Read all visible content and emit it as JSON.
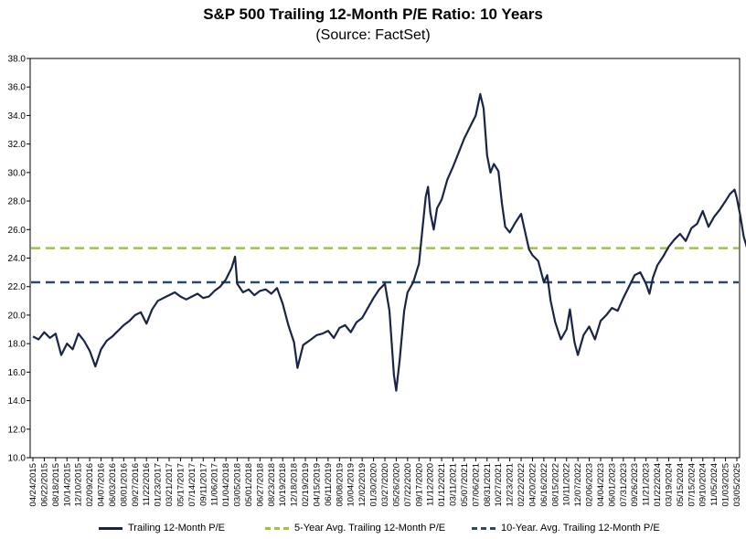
{
  "chart_data": {
    "type": "line",
    "title": "S&P 500 Trailing 12-Month P/E Ratio: 10 Years",
    "subtitle": "(Source: FactSet)",
    "xlabel": "",
    "ylabel": "",
    "ylim": [
      10.0,
      38.0
    ],
    "yticks": [
      "10.0",
      "12.0",
      "14.0",
      "16.0",
      "18.0",
      "20.0",
      "22.0",
      "24.0",
      "26.0",
      "28.0",
      "30.0",
      "32.0",
      "34.0",
      "36.0",
      "38.0"
    ],
    "xticks": [
      "04/24/2015",
      "06/22/2015",
      "08/18/2015",
      "10/14/2015",
      "12/10/2015",
      "02/09/2016",
      "04/07/2016",
      "06/03/2016",
      "08/01/2016",
      "09/27/2016",
      "11/22/2016",
      "01/23/2017",
      "03/21/2017",
      "05/17/2017",
      "07/14/2017",
      "09/11/2017",
      "11/06/2017",
      "01/04/2018",
      "03/05/2018",
      "05/01/2018",
      "06/27/2018",
      "08/23/2018",
      "10/19/2018",
      "12/18/2018",
      "02/19/2019",
      "04/15/2019",
      "06/11/2019",
      "08/08/2019",
      "10/04/2019",
      "12/02/2019",
      "01/30/2020",
      "03/27/2020",
      "05/26/2020",
      "07/22/2020",
      "09/17/2020",
      "11/12/2020",
      "01/12/2021",
      "03/11/2021",
      "05/07/2021",
      "07/06/2021",
      "08/31/2021",
      "10/27/2021",
      "12/23/2021",
      "02/22/2022",
      "04/20/2022",
      "06/16/2022",
      "08/15/2022",
      "10/11/2022",
      "12/07/2022",
      "02/06/2023",
      "04/04/2023",
      "06/01/2023",
      "07/31/2023",
      "09/26/2023",
      "11/21/2023",
      "01/22/2024",
      "03/19/2024",
      "05/15/2024",
      "07/15/2024",
      "09/10/2024",
      "11/05/2024",
      "01/03/2025",
      "03/05/2025"
    ],
    "grid": false,
    "legend_position": "bottom",
    "series": [
      {
        "name": "Trailing 12-Month P/E",
        "color": "#1a2447",
        "points": [
          [
            0,
            18.5
          ],
          [
            0.5,
            18.3
          ],
          [
            1,
            18.8
          ],
          [
            1.5,
            18.4
          ],
          [
            2,
            18.7
          ],
          [
            2.5,
            17.2
          ],
          [
            3,
            18.0
          ],
          [
            3.5,
            17.6
          ],
          [
            4,
            18.7
          ],
          [
            4.5,
            18.2
          ],
          [
            5,
            17.5
          ],
          [
            5.5,
            16.4
          ],
          [
            6,
            17.6
          ],
          [
            6.5,
            18.2
          ],
          [
            7,
            18.5
          ],
          [
            7.5,
            18.9
          ],
          [
            8,
            19.3
          ],
          [
            8.5,
            19.6
          ],
          [
            9,
            20.0
          ],
          [
            9.5,
            20.2
          ],
          [
            10,
            19.4
          ],
          [
            10.5,
            20.4
          ],
          [
            11,
            21.0
          ],
          [
            11.5,
            21.2
          ],
          [
            12,
            21.4
          ],
          [
            12.5,
            21.6
          ],
          [
            13,
            21.3
          ],
          [
            13.5,
            21.1
          ],
          [
            14,
            21.3
          ],
          [
            14.5,
            21.5
          ],
          [
            15,
            21.2
          ],
          [
            15.5,
            21.3
          ],
          [
            16,
            21.7
          ],
          [
            16.5,
            22.0
          ],
          [
            17,
            22.5
          ],
          [
            17.5,
            23.3
          ],
          [
            17.8,
            24.1
          ],
          [
            18,
            22.2
          ],
          [
            18.5,
            21.6
          ],
          [
            19,
            21.8
          ],
          [
            19.5,
            21.4
          ],
          [
            20,
            21.7
          ],
          [
            20.5,
            21.8
          ],
          [
            21,
            21.5
          ],
          [
            21.5,
            21.9
          ],
          [
            22,
            20.8
          ],
          [
            22.5,
            19.3
          ],
          [
            23,
            18.1
          ],
          [
            23.3,
            16.3
          ],
          [
            23.8,
            17.9
          ],
          [
            24.5,
            18.3
          ],
          [
            25,
            18.6
          ],
          [
            25.5,
            18.7
          ],
          [
            26,
            18.9
          ],
          [
            26.5,
            18.4
          ],
          [
            27,
            19.1
          ],
          [
            27.5,
            19.3
          ],
          [
            28,
            18.8
          ],
          [
            28.5,
            19.5
          ],
          [
            29,
            19.8
          ],
          [
            29.5,
            20.5
          ],
          [
            30,
            21.2
          ],
          [
            30.5,
            21.8
          ],
          [
            31,
            22.2
          ],
          [
            31.4,
            20.3
          ],
          [
            31.8,
            15.8
          ],
          [
            32,
            14.7
          ],
          [
            32.3,
            16.8
          ],
          [
            32.7,
            20.3
          ],
          [
            33,
            21.6
          ],
          [
            33.5,
            22.3
          ],
          [
            34,
            23.6
          ],
          [
            34.3,
            26.0
          ],
          [
            34.6,
            28.3
          ],
          [
            34.8,
            29.0
          ],
          [
            35,
            27.2
          ],
          [
            35.3,
            26.0
          ],
          [
            35.6,
            27.5
          ],
          [
            36,
            28.1
          ],
          [
            36.5,
            29.5
          ],
          [
            37,
            30.4
          ],
          [
            37.5,
            31.4
          ],
          [
            38,
            32.4
          ],
          [
            38.5,
            33.2
          ],
          [
            39,
            34.0
          ],
          [
            39.4,
            35.5
          ],
          [
            39.7,
            34.5
          ],
          [
            40,
            31.2
          ],
          [
            40.3,
            30.0
          ],
          [
            40.6,
            30.6
          ],
          [
            41,
            30.1
          ],
          [
            41.3,
            27.9
          ],
          [
            41.6,
            26.2
          ],
          [
            42,
            25.8
          ],
          [
            42.5,
            26.5
          ],
          [
            43,
            27.1
          ],
          [
            43.3,
            26.0
          ],
          [
            43.7,
            24.6
          ],
          [
            44,
            24.2
          ],
          [
            44.5,
            23.8
          ],
          [
            45,
            22.3
          ],
          [
            45.3,
            22.8
          ],
          [
            45.6,
            21.0
          ],
          [
            46,
            19.5
          ],
          [
            46.5,
            18.3
          ],
          [
            47,
            19.0
          ],
          [
            47.3,
            20.4
          ],
          [
            47.7,
            18.1
          ],
          [
            48,
            17.2
          ],
          [
            48.5,
            18.6
          ],
          [
            49,
            19.2
          ],
          [
            49.5,
            18.3
          ],
          [
            50,
            19.6
          ],
          [
            50.5,
            20.0
          ],
          [
            51,
            20.5
          ],
          [
            51.5,
            20.3
          ],
          [
            52,
            21.2
          ],
          [
            52.5,
            22.0
          ],
          [
            53,
            22.8
          ],
          [
            53.5,
            23.0
          ],
          [
            54,
            22.2
          ],
          [
            54.3,
            21.5
          ],
          [
            54.6,
            22.6
          ],
          [
            55,
            23.5
          ],
          [
            55.5,
            24.1
          ],
          [
            56,
            24.8
          ],
          [
            56.5,
            25.3
          ],
          [
            57,
            25.7
          ],
          [
            57.5,
            25.2
          ],
          [
            58,
            26.1
          ],
          [
            58.5,
            26.4
          ],
          [
            59,
            27.3
          ],
          [
            59.5,
            26.2
          ],
          [
            60,
            26.9
          ],
          [
            60.5,
            27.4
          ],
          [
            61,
            28.0
          ],
          [
            61.4,
            28.5
          ],
          [
            61.8,
            28.8
          ],
          [
            62,
            28.2
          ],
          [
            62.3,
            27.0
          ],
          [
            62.6,
            25.5
          ],
          [
            62.9,
            24.7
          ],
          [
            63.1,
            22.5
          ],
          [
            63.3,
            23.6
          ],
          [
            63.5,
            24.5
          ]
        ]
      },
      {
        "name": "5-Year Avg. Trailing 12-Month P/E",
        "color": "#9bc53d",
        "value": 24.7
      },
      {
        "name": "10-Year. Avg. Trailing 12-Month P/E",
        "color": "#2a4a6e",
        "value": 22.3
      }
    ]
  }
}
